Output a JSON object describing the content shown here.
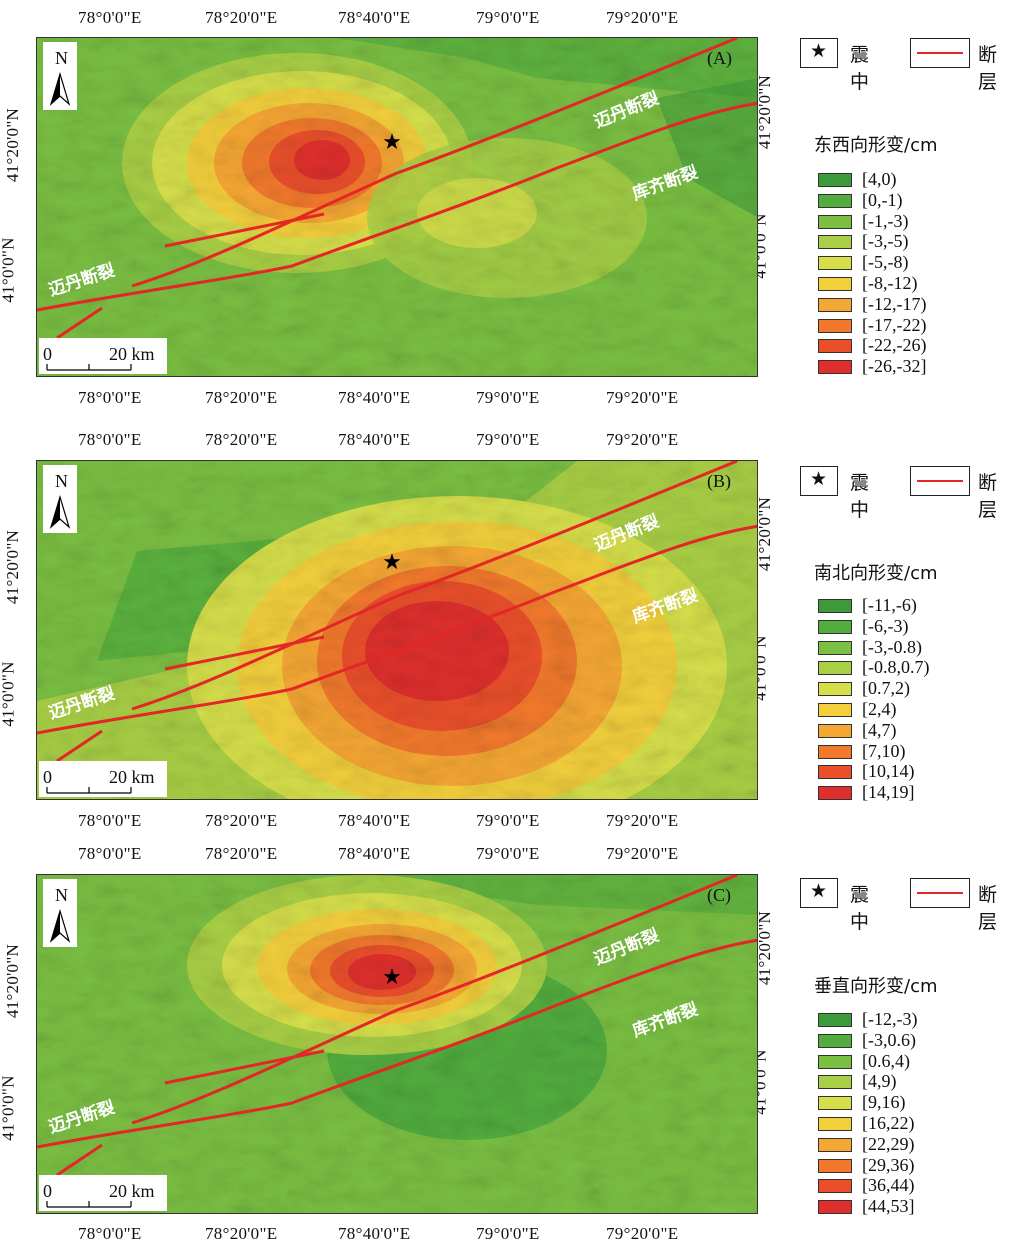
{
  "lon_ticks": [
    "78°0'0\"E",
    "78°20'0\"E",
    "78°40'0\"E",
    "79°0'0\"E",
    "79°20'0\"E"
  ],
  "lat_ticks": [
    "41°20'0\"N",
    "41°0'0\"N"
  ],
  "north_label": "N",
  "scale": {
    "zero": "0",
    "dist": "20 km"
  },
  "faults": {
    "maidan": "迈丹断裂",
    "kuqi": "库齐断裂"
  },
  "legend_common": {
    "epicenter": "震中",
    "fault": "断层",
    "epicenter_symbol": "★"
  },
  "panels": [
    {
      "id": "A",
      "label": "(A)",
      "title": "东西向形变/cm",
      "classes": [
        {
          "range": "[4,0)",
          "color": "#3c9a3a"
        },
        {
          "range": "[0,-1)",
          "color": "#52ad3e"
        },
        {
          "range": "[-1,-3)",
          "color": "#7abf42"
        },
        {
          "range": "[-3,-5)",
          "color": "#a8cf45"
        },
        {
          "range": "[-5,-8)",
          "color": "#d6df4a"
        },
        {
          "range": "[-8,-12)",
          "color": "#f3cf3c"
        },
        {
          "range": "[-12,-17)",
          "color": "#f5a733"
        },
        {
          "range": "[-17,-22)",
          "color": "#f2792c"
        },
        {
          "range": "[-22,-26)",
          "color": "#ea4f2a"
        },
        {
          "range": "[-26,-32]",
          "color": "#df2f2d"
        }
      ]
    },
    {
      "id": "B",
      "label": "(B)",
      "title": "南北向形变/cm",
      "classes": [
        {
          "range": "[-11,-6)",
          "color": "#3c9a3a"
        },
        {
          "range": "[-6,-3)",
          "color": "#52ad3e"
        },
        {
          "range": "[-3,-0.8)",
          "color": "#7abf42"
        },
        {
          "range": "[-0.8,0.7)",
          "color": "#a8cf45"
        },
        {
          "range": "[0.7,2)",
          "color": "#d6df4a"
        },
        {
          "range": "[2,4)",
          "color": "#f3cf3c"
        },
        {
          "range": "[4,7)",
          "color": "#f5a733"
        },
        {
          "range": "[7,10)",
          "color": "#f2792c"
        },
        {
          "range": "[10,14)",
          "color": "#ea4f2a"
        },
        {
          "range": "[14,19]",
          "color": "#df2f2d"
        }
      ]
    },
    {
      "id": "C",
      "label": "(C)",
      "title": "垂直向形变/cm",
      "classes": [
        {
          "range": "[-12,-3)",
          "color": "#3c9a3a"
        },
        {
          "range": "[-3,0.6)",
          "color": "#52ad3e"
        },
        {
          "range": "[0.6,4)",
          "color": "#7abf42"
        },
        {
          "range": "[4,9)",
          "color": "#a8cf45"
        },
        {
          "range": "[9,16)",
          "color": "#d6df4a"
        },
        {
          "range": "[16,22)",
          "color": "#f3cf3c"
        },
        {
          "range": "[22,29)",
          "color": "#f5a733"
        },
        {
          "range": "[29,36)",
          "color": "#f2792c"
        },
        {
          "range": "[36,44)",
          "color": "#ea4f2a"
        },
        {
          "range": "[44,53]",
          "color": "#df2f2d"
        }
      ]
    }
  ]
}
